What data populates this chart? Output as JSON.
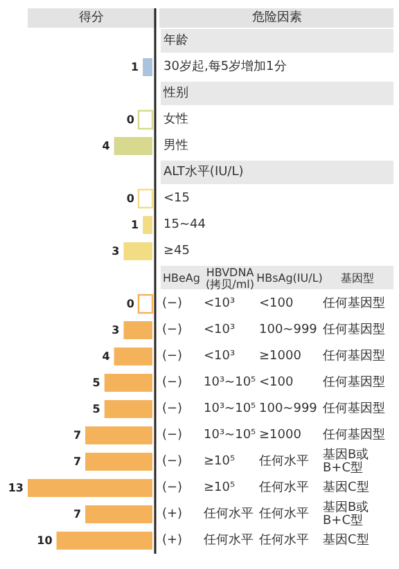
{
  "chart_data": {
    "type": "bar",
    "orientation": "horizontal",
    "xlabel": "得分",
    "ylabel": "危险因素",
    "categories": [
      "年龄",
      "30岁起,每5岁增加1分",
      "性别",
      "女性",
      "男性",
      "ALT水平(IU/L)",
      "<15",
      "15~44",
      "≥45",
      "HBeAg  HBVDNA(拷贝/ml)  HBsAg(IU/L)  基因型",
      "(−)  <10³  <100  任何基因型",
      "(−)  <10³  100~999  任何基因型",
      "(−)  <10³  ≥1000  任何基因型",
      "(−)  10³~10⁵  <100  任何基因型",
      "(−)  10³~10⁵  100~999  任何基因型",
      "(−)  10³~10⁵  ≥1000  任何基因型",
      "(−)  ≥10⁵  任何水平  基因B或B+C型",
      "(−)  ≥10⁵  任何水平  基因C型",
      "(+)  任何水平  任何水平  基因B或B+C型",
      "(+)  任何水平  任何水平  基因C型"
    ],
    "values": [
      null,
      1,
      null,
      0,
      4,
      null,
      0,
      1,
      3,
      null,
      0,
      3,
      4,
      5,
      5,
      7,
      7,
      13,
      7,
      10
    ],
    "colors": [
      null,
      "#a9c4dc",
      null,
      "#d7d98e",
      "#d7d98e",
      null,
      "#f2dc84",
      "#f2dc84",
      "#f2dc84",
      null,
      "#f4b35a",
      "#f4b35a",
      "#f4b35a",
      "#f4b35a",
      "#f4b35a",
      "#f4b35a",
      "#f4b35a",
      "#f4b35a",
      "#f4b35a",
      "#f4b35a"
    ],
    "data_labels": true,
    "tick_labels": "y"
  }
}
